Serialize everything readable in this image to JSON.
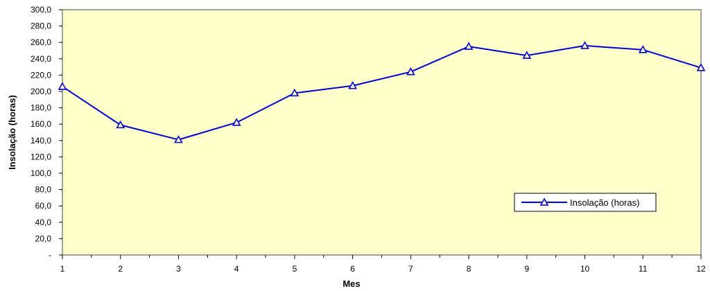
{
  "chart_data": {
    "type": "line",
    "title": "",
    "xlabel": "Mes",
    "ylabel": "Insolação (horas)",
    "x": [
      1,
      2,
      3,
      4,
      5,
      6,
      7,
      8,
      9,
      10,
      11,
      12
    ],
    "x_tick_labels": [
      "1",
      "2",
      "3",
      "4",
      "5",
      "6",
      "7",
      "8",
      "9",
      "10",
      "11",
      "12"
    ],
    "ylim": [
      0,
      300
    ],
    "y_ticks": [
      0,
      20,
      40,
      60,
      80,
      100,
      120,
      140,
      160,
      180,
      200,
      220,
      240,
      260,
      280,
      300
    ],
    "y_tick_labels": [
      "-",
      "20,0",
      "40,0",
      "60,0",
      "80,0",
      "100,0",
      "120,0",
      "140,0",
      "160,0",
      "180,0",
      "200,0",
      "220,0",
      "240,0",
      "260,0",
      "280,0",
      "300,0"
    ],
    "grid": false,
    "legend_position": "lower-right",
    "background_color": "#ffffcc",
    "series": [
      {
        "name": "Insolação (horas)",
        "color": "#0000cc",
        "marker": "triangle-open",
        "values": [
          206,
          159,
          141,
          162,
          198,
          207,
          224,
          255,
          244,
          256,
          251,
          229
        ]
      }
    ]
  }
}
